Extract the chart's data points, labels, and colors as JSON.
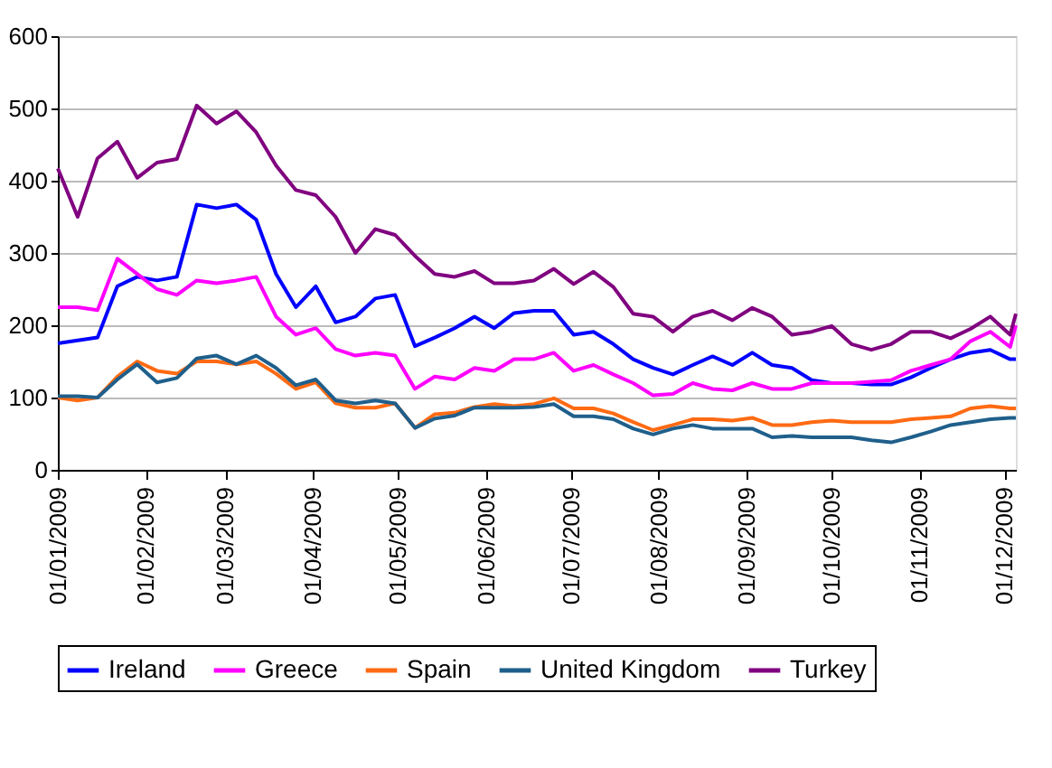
{
  "chart_data": {
    "type": "line",
    "x": [
      "2009-01-01",
      "2009-01-08",
      "2009-01-15",
      "2009-01-22",
      "2009-01-29",
      "2009-02-05",
      "2009-02-12",
      "2009-02-19",
      "2009-02-26",
      "2009-03-05",
      "2009-03-12",
      "2009-03-19",
      "2009-03-26",
      "2009-04-02",
      "2009-04-09",
      "2009-04-16",
      "2009-04-23",
      "2009-04-30",
      "2009-05-07",
      "2009-05-14",
      "2009-05-21",
      "2009-05-28",
      "2009-06-04",
      "2009-06-11",
      "2009-06-18",
      "2009-06-25",
      "2009-07-02",
      "2009-07-09",
      "2009-07-16",
      "2009-07-23",
      "2009-07-30",
      "2009-08-06",
      "2009-08-13",
      "2009-08-20",
      "2009-08-27",
      "2009-09-03",
      "2009-09-10",
      "2009-09-17",
      "2009-09-24",
      "2009-10-01",
      "2009-10-08",
      "2009-10-15",
      "2009-10-22",
      "2009-10-29",
      "2009-11-05",
      "2009-11-12",
      "2009-11-19",
      "2009-11-26",
      "2009-12-03",
      "2009-12-05"
    ],
    "series": [
      {
        "name": "Ireland",
        "color": "#0000ff",
        "values": [
          175,
          179,
          183,
          254,
          267,
          262,
          267,
          367,
          362,
          367,
          346,
          271,
          225,
          254,
          204,
          212,
          237,
          242,
          171,
          183,
          196,
          212,
          196,
          217,
          220,
          220,
          187,
          191,
          174,
          153,
          141,
          132,
          145,
          157,
          145,
          162,
          145,
          141,
          124,
          120,
          120,
          118,
          118,
          128,
          141,
          153,
          162,
          166,
          153,
          153
        ]
      },
      {
        "name": "Greece",
        "color": "#ff00ff",
        "values": [
          225,
          225,
          221,
          292,
          271,
          250,
          242,
          262,
          258,
          262,
          267,
          212,
          187,
          196,
          167,
          158,
          162,
          158,
          112,
          129,
          125,
          141,
          137,
          153,
          153,
          162,
          137,
          145,
          132,
          120,
          103,
          105,
          120,
          112,
          110,
          120,
          112,
          112,
          120,
          120,
          120,
          122,
          124,
          137,
          145,
          153,
          178,
          191,
          170,
          200
        ]
      },
      {
        "name": "Spain",
        "color": "#ff6a13",
        "values": [
          100,
          96,
          100,
          129,
          150,
          137,
          133,
          150,
          150,
          146,
          150,
          133,
          112,
          121,
          92,
          86,
          86,
          92,
          58,
          77,
          79,
          87,
          91,
          88,
          91,
          99,
          85,
          85,
          78,
          66,
          55,
          62,
          70,
          70,
          68,
          72,
          62,
          62,
          66,
          68,
          66,
          66,
          66,
          70,
          72,
          74,
          85,
          88,
          85,
          85
        ]
      },
      {
        "name": "United Kingdom",
        "color": "#1f5f8b",
        "values": [
          102,
          102,
          100,
          125,
          146,
          121,
          127,
          154,
          158,
          146,
          158,
          141,
          117,
          125,
          96,
          92,
          96,
          92,
          58,
          71,
          75,
          86,
          86,
          86,
          87,
          91,
          74,
          74,
          70,
          57,
          49,
          57,
          62,
          57,
          57,
          57,
          45,
          47,
          45,
          45,
          45,
          41,
          38,
          45,
          53,
          62,
          66,
          70,
          72,
          72
        ]
      },
      {
        "name": "Turkey",
        "color": "#800080",
        "values": [
          417,
          350,
          431,
          454,
          404,
          425,
          430,
          504,
          479,
          496,
          467,
          421,
          387,
          380,
          350,
          300,
          333,
          325,
          296,
          271,
          267,
          275,
          258,
          258,
          262,
          278,
          257,
          274,
          253,
          216,
          212,
          191,
          212,
          220,
          207,
          224,
          212,
          187,
          191,
          199,
          174,
          166,
          174,
          191,
          191,
          182,
          195,
          212,
          187,
          216
        ]
      }
    ],
    "xlim": [
      "2009-01-01",
      "2009-12-05"
    ],
    "xticks": [
      {
        "value": "2009-01-01",
        "label": "01/01/2009"
      },
      {
        "value": "2009-02-01",
        "label": "01/02/2009"
      },
      {
        "value": "2009-03-01",
        "label": "01/03/2009"
      },
      {
        "value": "2009-04-01",
        "label": "01/04/2009"
      },
      {
        "value": "2009-05-01",
        "label": "01/05/2009"
      },
      {
        "value": "2009-06-01",
        "label": "01/06/2009"
      },
      {
        "value": "2009-07-01",
        "label": "01/07/2009"
      },
      {
        "value": "2009-08-01",
        "label": "01/08/2009"
      },
      {
        "value": "2009-09-01",
        "label": "01/09/2009"
      },
      {
        "value": "2009-10-01",
        "label": "01/10/2009"
      },
      {
        "value": "2009-11-01",
        "label": "01/11/2009"
      },
      {
        "value": "2009-12-01",
        "label": "01/12/2009"
      }
    ],
    "ylim": [
      0,
      600
    ],
    "yticks": [
      0,
      100,
      200,
      300,
      400,
      500,
      600
    ],
    "grid": "y",
    "legend": "bottom",
    "marker": "none",
    "line_style": "solid"
  }
}
